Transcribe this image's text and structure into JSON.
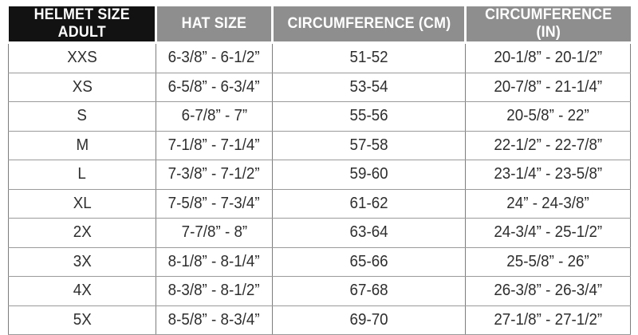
{
  "colors": {
    "page-bg": "#ffffff",
    "header-first-bg": "#121212",
    "header-bg": "#8e8e8e",
    "header-text": "#ffffff",
    "row-bg": "#ffffff",
    "body-text": "#2e2e2e",
    "border-v": "#7d7d7d",
    "border-h": "#9a9a9a"
  },
  "chart_data": {
    "type": "table",
    "title": "Helmet Size Adult chart",
    "columns": [
      "HELMET SIZE ADULT",
      "HAT SIZE",
      "CIRCUMFERENCE (CM)",
      "CIRCUMFERENCE (IN)"
    ],
    "rows": [
      [
        "XXS",
        "6-3/8” - 6-1/2”",
        "51-52",
        "20-1/8” - 20-1/2”"
      ],
      [
        "XS",
        "6-5/8” - 6-3/4”",
        "53-54",
        "20-7/8” - 21-1/4”"
      ],
      [
        "S",
        "6-7/8” - 7”",
        "55-56",
        "20-5/8” - 22”"
      ],
      [
        "M",
        "7-1/8” - 7-1/4”",
        "57-58",
        "22-1/2” - 22-7/8”"
      ],
      [
        "L",
        "7-3/8” - 7-1/2”",
        "59-60",
        "23-1/4” - 23-5/8”"
      ],
      [
        "XL",
        "7-5/8” - 7-3/4”",
        "61-62",
        "24” - 24-3/8”"
      ],
      [
        "2X",
        "7-7/8” - 8”",
        "63-64",
        "24-3/4” - 25-1/2”"
      ],
      [
        "3X",
        "8-1/8” - 8-1/4”",
        "65-66",
        "25-5/8” - 26”"
      ],
      [
        "4X",
        "8-3/8” - 8-1/2”",
        "67-68",
        "26-3/8” - 26-3/4”"
      ],
      [
        "5X",
        "8-5/8” - 8-3/4”",
        "69-70",
        "27-1/8” - 27-1/2”"
      ]
    ]
  }
}
